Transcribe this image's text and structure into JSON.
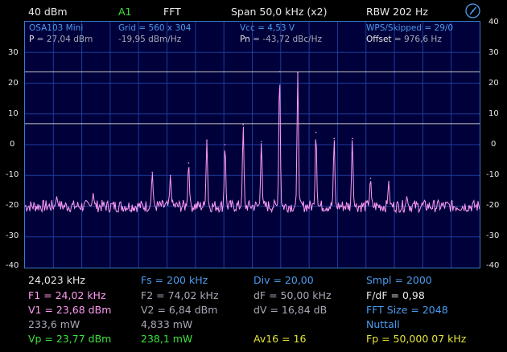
{
  "top": {
    "ref_level": "40 dBm",
    "channel": "A1",
    "mode": "FFT",
    "span": "Span 50,0 kHz (x2)",
    "rbw": "RBW 202 Hz"
  },
  "header": {
    "device": "OSA103 Mini",
    "grid": "Grid = 560 x 304",
    "vcc": "Vcc = 4,53 V",
    "wps": "WPS/Skipped  = 29/0",
    "power_label": "P",
    "power_value": " = 27,04 dBm",
    "density": "-19,95 dBm/Hz",
    "pn_label": "Pn",
    "pn_value": " = -43,72 dBc/Hz",
    "offset_label": "Offset",
    "offset_value": " = 976,6 Hz"
  },
  "y_ticks_left": [
    "30",
    "20",
    "10",
    "0",
    "-10",
    "-20",
    "-30",
    "-40"
  ],
  "y_ticks_right": [
    "40",
    "30",
    "20",
    "10",
    "0",
    "-10",
    "-20",
    "-30",
    "-40"
  ],
  "readouts": {
    "freq": "24,023 kHz",
    "fs": "Fs = 200 kHz",
    "div": "Div = 20,00",
    "smpl": "Smpl = 2000",
    "f1": "F1 = 24,02 kHz",
    "f2": "F2 = 74,02 kHz",
    "df": "dF = 50,00 kHz",
    "fdf": "F/dF = 0,98",
    "v1": "V1 = 23,68 dBm",
    "v2": "V2 = 6,84 dBm",
    "dv": "dV = 16,84 dB",
    "fft_size": "FFT Size = 2048",
    "p1": "233,6 mW",
    "p2": "4,833 mW",
    "window": "Nuttall",
    "vp": "Vp = 23,77 dBm",
    "pw": "238,1 mW",
    "av": "Av16 = 16",
    "fp": "Fp = 50,000 07 kHz"
  },
  "colors": {
    "trace": "#ff9bf4",
    "grid": "#1c3c9c",
    "marker": "#c8c8c8",
    "frame": "#3a78c8"
  },
  "chart_data": {
    "type": "line",
    "ylim": [
      -40,
      40
    ],
    "noise_floor_dbm": -20,
    "markers_dbm": [
      23.68,
      6.84
    ],
    "peaks": [
      {
        "x": 0.07,
        "y": -17
      },
      {
        "x": 0.15,
        "y": -16
      },
      {
        "x": 0.28,
        "y": -9
      },
      {
        "x": 0.32,
        "y": -10
      },
      {
        "x": 0.36,
        "y": -6
      },
      {
        "x": 0.4,
        "y": 1.5
      },
      {
        "x": 0.44,
        "y": 0
      },
      {
        "x": 0.48,
        "y": 6.5
      },
      {
        "x": 0.52,
        "y": 1
      },
      {
        "x": 0.56,
        "y": 23.7
      },
      {
        "x": 0.6,
        "y": 23.5
      },
      {
        "x": 0.64,
        "y": 4
      },
      {
        "x": 0.68,
        "y": 2
      },
      {
        "x": 0.72,
        "y": 2
      },
      {
        "x": 0.76,
        "y": -11
      },
      {
        "x": 0.8,
        "y": -12
      },
      {
        "x": 0.84,
        "y": -17
      }
    ]
  }
}
